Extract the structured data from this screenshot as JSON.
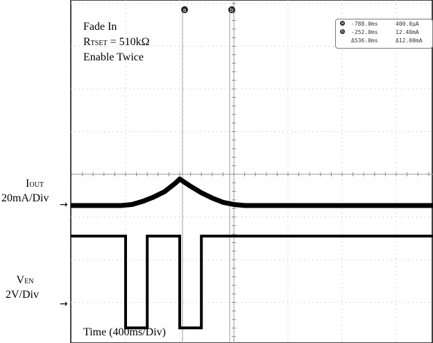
{
  "chart_data": {
    "type": "line",
    "title_lines": [
      "Fade In",
      "Enable Twice"
    ],
    "rset_label": {
      "main": "R",
      "sub": "TSET",
      "rest": " = 510kΩ"
    },
    "xlabel": "Time (400ms/Div)",
    "grid": {
      "cols": 10,
      "rows": 8,
      "dotted": true
    },
    "channels": [
      {
        "name_main": "I",
        "name_sub": "OUT",
        "scale": "20mA/Div"
      },
      {
        "name_main": "V",
        "name_sub": "EN",
        "scale": "2V/Div"
      }
    ],
    "cursors": {
      "a": {
        "badge": "a",
        "time": "-788.0ms",
        "value": "400.0µA"
      },
      "b": {
        "badge": "b",
        "time": "-252.0ms",
        "value": "12.40mA"
      },
      "delta": {
        "time": "Δ536.0ms",
        "value": "Δ12.00mA"
      }
    },
    "series": [
      {
        "name": "IOUT",
        "x_ms": [
          -2000,
          -832,
          -752,
          -672,
          -592,
          -512,
          -432,
          -400,
          -320,
          -240,
          -160,
          -80,
          0,
          80,
          160,
          240,
          320,
          400,
          2000
        ],
        "y_ma": [
          0,
          0,
          0.5,
          2,
          4,
          6.5,
          10.5,
          12.4,
          9,
          6,
          3.5,
          1.5,
          0.5,
          0,
          0,
          0,
          0,
          0,
          0
        ]
      },
      {
        "name": "VEN",
        "x_ms": [
          -2000,
          -800,
          -800,
          -640,
          -640,
          -400,
          -400,
          -240,
          -240,
          2000
        ],
        "y_v": [
          0,
          0,
          -4.3,
          -4.3,
          0,
          0,
          -4.3,
          -4.3,
          0,
          0
        ]
      }
    ]
  }
}
